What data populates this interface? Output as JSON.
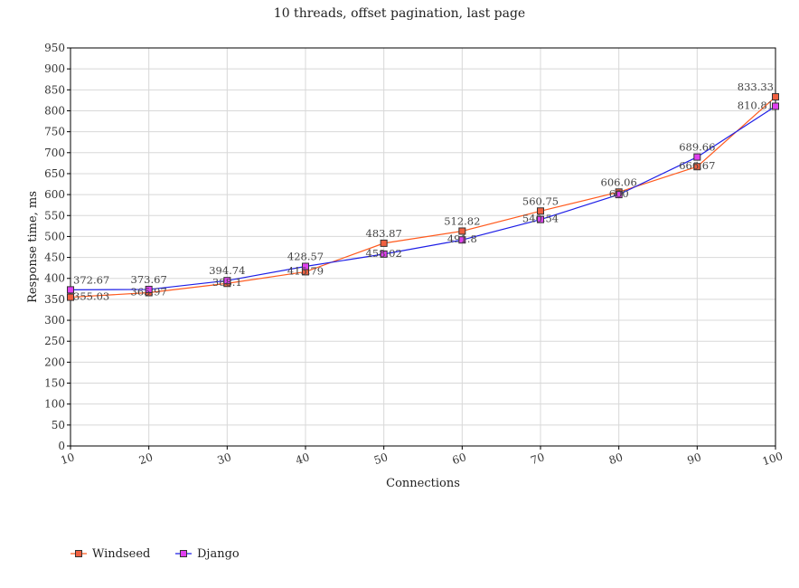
{
  "chart_data": {
    "type": "line",
    "title": "10 threads, offset pagination, last page",
    "xlabel": "Connections",
    "ylabel": "Response time, ms",
    "x": [
      10,
      20,
      30,
      40,
      50,
      60,
      70,
      80,
      90,
      100
    ],
    "x_tick_labels": [
      "10",
      "20",
      "30",
      "40",
      "50",
      "60",
      "70",
      "80",
      "90",
      "100"
    ],
    "ylim": [
      0,
      950
    ],
    "y_tick_step": 50,
    "grid": true,
    "legend_position": "bottom-left",
    "series": [
      {
        "name": "Windseed",
        "color": "#ff5a1e",
        "marker_fill": "#f06040",
        "values": [
          355.03,
          365.97,
          388.1,
          415.79,
          483.87,
          512.82,
          560.75,
          606.06,
          666.67,
          833.33
        ],
        "labels": [
          "355.03",
          "365.97",
          "388.1",
          "415.79",
          "483.87",
          "512.82",
          "560.75",
          "606.06",
          "666.67",
          "833.33"
        ]
      },
      {
        "name": "Django",
        "color": "#1e1ee6",
        "marker_fill": "#e040f0",
        "values": [
          372.67,
          373.67,
          394.74,
          428.57,
          458.02,
          491.8,
          540.54,
          600.0,
          689.66,
          810.81
        ],
        "labels": [
          "372.67",
          "373.67",
          "394.74",
          "428.57",
          "458.02",
          "491.8",
          "540.54",
          "600",
          "689.66",
          "810.81"
        ]
      }
    ]
  }
}
